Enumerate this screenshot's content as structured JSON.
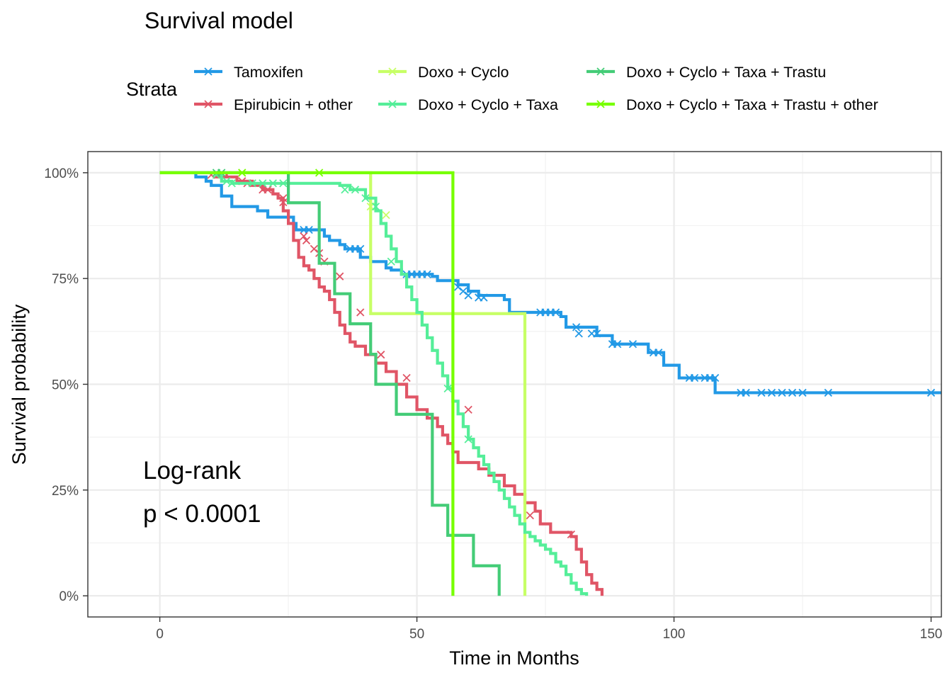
{
  "chart_data": {
    "type": "line",
    "subtype": "kaplan-meier step",
    "title": "Survival model",
    "xlabel": "Time in Months",
    "ylabel": "Survival probability",
    "xlim": [
      -14,
      152
    ],
    "ylim": [
      -5,
      105
    ],
    "xticks": [
      0,
      50,
      100,
      150
    ],
    "yticks": [
      0,
      25,
      50,
      75,
      100
    ],
    "ytick_labels": [
      "0%",
      "25%",
      "50%",
      "75%",
      "100%"
    ],
    "grid": true,
    "legend": {
      "title": "Strata",
      "position": "top"
    },
    "annotation_lines": [
      "Log-rank",
      "p < 0.0001"
    ],
    "series": [
      {
        "name": "Tamoxifen",
        "color": "#2299e6",
        "steps": [
          [
            0,
            100
          ],
          [
            7,
            99
          ],
          [
            9,
            98
          ],
          [
            10,
            97
          ],
          [
            12,
            94.5
          ],
          [
            14,
            92
          ],
          [
            18,
            92
          ],
          [
            19,
            91
          ],
          [
            21,
            89.5
          ],
          [
            26,
            88
          ],
          [
            26.5,
            86.5
          ],
          [
            32,
            85
          ],
          [
            33,
            84
          ],
          [
            35,
            83
          ],
          [
            36,
            82
          ],
          [
            39,
            80
          ],
          [
            41,
            79
          ],
          [
            44,
            77.5
          ],
          [
            45,
            77
          ],
          [
            47,
            76
          ],
          [
            53,
            75.5
          ],
          [
            54,
            74.5
          ],
          [
            58,
            73.5
          ],
          [
            60,
            72
          ],
          [
            62,
            71
          ],
          [
            67,
            70
          ],
          [
            68,
            67
          ],
          [
            78,
            66
          ],
          [
            79,
            63.5
          ],
          [
            85,
            61.5
          ],
          [
            88,
            59.5
          ],
          [
            95,
            57.5
          ],
          [
            98,
            54.5
          ],
          [
            101,
            51.5
          ],
          [
            108,
            48
          ],
          [
            152,
            48
          ]
        ],
        "censors": [
          [
            28,
            86.5
          ],
          [
            29,
            86.5
          ],
          [
            37,
            82
          ],
          [
            38,
            82
          ],
          [
            39,
            82
          ],
          [
            48,
            76
          ],
          [
            49,
            76
          ],
          [
            50,
            76
          ],
          [
            51,
            76
          ],
          [
            52,
            76
          ],
          [
            58,
            73
          ],
          [
            59,
            72
          ],
          [
            60,
            71
          ],
          [
            62,
            70.5
          ],
          [
            63,
            70.5
          ],
          [
            74,
            67
          ],
          [
            75,
            67
          ],
          [
            76,
            67
          ],
          [
            77,
            67
          ],
          [
            81,
            63.5
          ],
          [
            81.5,
            62
          ],
          [
            84,
            62
          ],
          [
            85,
            62
          ],
          [
            88,
            59.5
          ],
          [
            89,
            59.5
          ],
          [
            92,
            59.5
          ],
          [
            96,
            57.5
          ],
          [
            97,
            57.5
          ],
          [
            103,
            51.5
          ],
          [
            104,
            51.5
          ],
          [
            106,
            51.5
          ],
          [
            107,
            51.5
          ],
          [
            108,
            51.5
          ],
          [
            113,
            48
          ],
          [
            114,
            48
          ],
          [
            117,
            48
          ],
          [
            119,
            48
          ],
          [
            121,
            48
          ],
          [
            123,
            48
          ],
          [
            125,
            48
          ],
          [
            130,
            48
          ],
          [
            150,
            48
          ]
        ]
      },
      {
        "name": "Epirubicin + other",
        "color": "#e05566",
        "steps": [
          [
            0,
            100
          ],
          [
            11,
            99
          ],
          [
            15,
            98
          ],
          [
            18,
            97
          ],
          [
            20,
            96
          ],
          [
            22,
            95
          ],
          [
            23,
            94
          ],
          [
            24,
            91
          ],
          [
            25,
            88
          ],
          [
            26,
            84
          ],
          [
            27,
            80
          ],
          [
            28,
            78
          ],
          [
            29,
            77
          ],
          [
            30,
            75
          ],
          [
            31,
            73
          ],
          [
            32,
            72
          ],
          [
            33,
            70
          ],
          [
            34,
            67
          ],
          [
            35,
            64
          ],
          [
            36,
            62
          ],
          [
            37,
            60
          ],
          [
            38,
            59
          ],
          [
            40,
            57
          ],
          [
            42,
            55
          ],
          [
            44,
            53
          ],
          [
            46,
            50
          ],
          [
            48,
            47
          ],
          [
            50,
            44
          ],
          [
            52,
            42
          ],
          [
            54,
            40
          ],
          [
            55,
            38
          ],
          [
            56,
            36
          ],
          [
            57,
            34
          ],
          [
            58,
            31.5
          ],
          [
            62,
            30
          ],
          [
            64,
            28.5
          ],
          [
            67,
            26
          ],
          [
            69,
            24
          ],
          [
            71,
            22
          ],
          [
            73,
            20
          ],
          [
            74,
            17
          ],
          [
            76,
            15
          ],
          [
            80,
            14
          ],
          [
            81,
            11
          ],
          [
            82,
            8
          ],
          [
            83,
            5
          ],
          [
            84,
            3
          ],
          [
            85,
            1.5
          ],
          [
            86,
            0
          ]
        ],
        "censors": [
          [
            10,
            99.5
          ],
          [
            13,
            99.5
          ],
          [
            16,
            98
          ],
          [
            17,
            97.5
          ],
          [
            20,
            96
          ],
          [
            21,
            96
          ],
          [
            24,
            94
          ],
          [
            24,
            93
          ],
          [
            28,
            85
          ],
          [
            28.5,
            84
          ],
          [
            30,
            82
          ],
          [
            31,
            81
          ],
          [
            32,
            79
          ],
          [
            35,
            75.5
          ],
          [
            39,
            67
          ],
          [
            43,
            57
          ],
          [
            48,
            51.5
          ],
          [
            60,
            44
          ],
          [
            72,
            19
          ],
          [
            80,
            14.5
          ]
        ]
      },
      {
        "name": "Doxo + Cyclo",
        "color": "#c7ff66",
        "steps": [
          [
            0,
            100
          ],
          [
            41,
            100
          ],
          [
            41,
            66.7
          ],
          [
            71,
            66.7
          ],
          [
            71,
            0
          ]
        ],
        "censors": [
          [
            16,
            100
          ],
          [
            41,
            92
          ],
          [
            44,
            90
          ]
        ]
      },
      {
        "name": "Doxo + Cyclo + Taxa",
        "color": "#55ee99",
        "steps": [
          [
            0,
            100
          ],
          [
            12,
            98
          ],
          [
            14,
            97.5
          ],
          [
            35,
            97
          ],
          [
            37,
            96
          ],
          [
            40,
            94
          ],
          [
            42,
            91
          ],
          [
            43,
            88
          ],
          [
            44,
            85
          ],
          [
            45,
            82
          ],
          [
            46,
            79
          ],
          [
            47,
            76
          ],
          [
            48,
            73
          ],
          [
            49,
            70
          ],
          [
            50,
            67
          ],
          [
            51,
            64
          ],
          [
            52,
            61
          ],
          [
            53,
            58
          ],
          [
            54,
            55
          ],
          [
            55,
            52
          ],
          [
            56,
            49
          ],
          [
            57,
            46
          ],
          [
            58,
            43
          ],
          [
            59,
            40
          ],
          [
            60,
            37
          ],
          [
            61,
            35
          ],
          [
            62,
            33
          ],
          [
            63,
            31
          ],
          [
            64,
            29
          ],
          [
            65,
            27
          ],
          [
            66,
            25
          ],
          [
            67,
            23
          ],
          [
            68,
            21
          ],
          [
            69,
            19
          ],
          [
            70,
            17
          ],
          [
            71,
            15
          ],
          [
            72,
            14
          ],
          [
            73,
            13
          ],
          [
            74,
            12
          ],
          [
            75,
            11
          ],
          [
            76,
            10
          ],
          [
            77,
            8
          ],
          [
            78,
            7
          ],
          [
            79,
            5
          ],
          [
            80,
            3
          ],
          [
            81,
            1.5
          ],
          [
            82,
            0.5
          ],
          [
            83,
            0
          ]
        ],
        "censors": [
          [
            11,
            99.5
          ],
          [
            13,
            98
          ],
          [
            14,
            97.5
          ],
          [
            18,
            97.5
          ],
          [
            20,
            97.5
          ],
          [
            22,
            97.5
          ],
          [
            24,
            97.5
          ],
          [
            36,
            96
          ],
          [
            38,
            96
          ],
          [
            40,
            94
          ],
          [
            42,
            92
          ],
          [
            45,
            79
          ],
          [
            56,
            49
          ],
          [
            60,
            37
          ]
        ]
      },
      {
        "name": "Doxo + Cyclo + Taxa + Trastu",
        "color": "#44cc77",
        "steps": [
          [
            0,
            100
          ],
          [
            25,
            100
          ],
          [
            25,
            92.9
          ],
          [
            31,
            92.9
          ],
          [
            31,
            78.6
          ],
          [
            34,
            78.6
          ],
          [
            34,
            71.4
          ],
          [
            37,
            71.4
          ],
          [
            37,
            64.3
          ],
          [
            41,
            64.3
          ],
          [
            41,
            57.1
          ],
          [
            42,
            57.1
          ],
          [
            42,
            50
          ],
          [
            46,
            50
          ],
          [
            46,
            42.9
          ],
          [
            53,
            42.9
          ],
          [
            53,
            21.4
          ],
          [
            56,
            21.4
          ],
          [
            56,
            14.3
          ],
          [
            61,
            14.3
          ],
          [
            61,
            7.1
          ],
          [
            66,
            7.1
          ],
          [
            66,
            0
          ]
        ],
        "censors": [
          [
            11,
            100
          ],
          [
            12,
            100
          ]
        ]
      },
      {
        "name": "Doxo + Cyclo + Taxa + Trastu + other",
        "color": "#77ff00",
        "steps": [
          [
            0,
            100
          ],
          [
            57,
            100
          ],
          [
            57,
            0
          ]
        ],
        "censors": [
          [
            16,
            100
          ],
          [
            31,
            100
          ]
        ]
      }
    ]
  }
}
